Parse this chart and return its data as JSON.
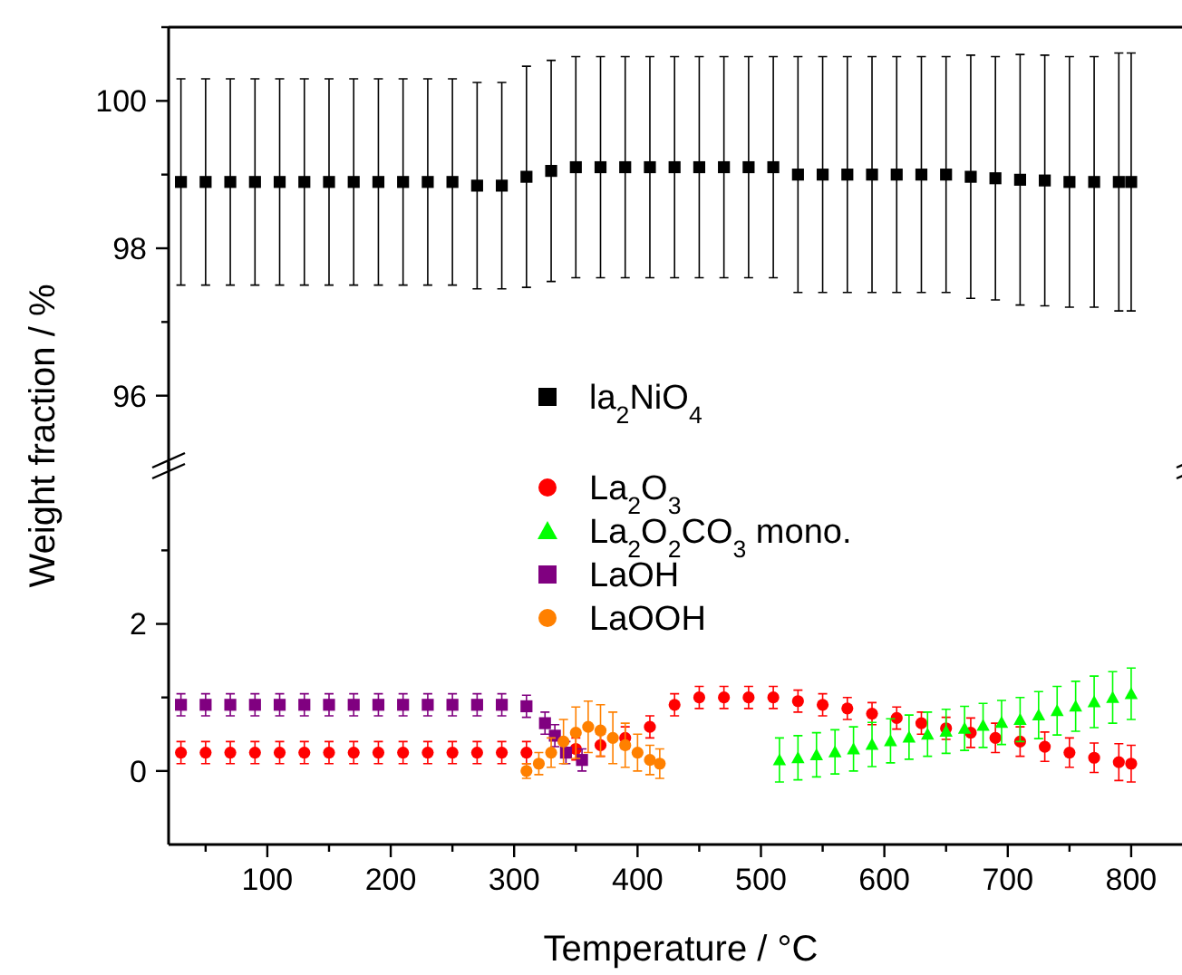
{
  "chart_data": [
    {
      "type": "scatter",
      "ylabel": "Weight fraction / %",
      "xlim": [
        20,
        850
      ],
      "ylim": [
        95,
        101
      ],
      "yticks": [
        96,
        {
          "value": 97,
          "label": null
        },
        98,
        {
          "value": 99,
          "label": null
        },
        100,
        {
          "value": 101,
          "label": null
        }
      ],
      "tick_labels": "y",
      "legend": "bottom",
      "marker": "square",
      "x": [
        30,
        50,
        70,
        90,
        110,
        130,
        150,
        170,
        190,
        210,
        230,
        250,
        270,
        290,
        310,
        330,
        350,
        370,
        390,
        410,
        430,
        450,
        470,
        490,
        510,
        530,
        550,
        570,
        590,
        610,
        630,
        650,
        670,
        690,
        710,
        730,
        750,
        770,
        790,
        800
      ],
      "series": [
        {
          "name": "la$_{2}$NiO$_{4}$",
          "color": "#000000",
          "values": [
            98.9,
            98.9,
            98.9,
            98.9,
            98.9,
            98.9,
            98.9,
            98.9,
            98.9,
            98.9,
            98.9,
            98.9,
            98.85,
            98.85,
            98.97,
            99.05,
            99.1,
            99.1,
            99.1,
            99.1,
            99.1,
            99.1,
            99.1,
            99.1,
            99.1,
            99.0,
            99.0,
            99.0,
            99.0,
            99.0,
            99.0,
            99.0,
            98.97,
            98.95,
            98.93,
            98.92,
            98.9,
            98.9,
            98.9,
            98.9
          ],
          "errors": [
            1.4,
            1.4,
            1.4,
            1.4,
            1.4,
            1.4,
            1.4,
            1.4,
            1.4,
            1.4,
            1.4,
            1.4,
            1.4,
            1.4,
            1.5,
            1.5,
            1.5,
            1.5,
            1.5,
            1.5,
            1.5,
            1.5,
            1.5,
            1.5,
            1.5,
            1.6,
            1.6,
            1.6,
            1.6,
            1.6,
            1.6,
            1.6,
            1.65,
            1.65,
            1.7,
            1.7,
            1.7,
            1.7,
            1.75,
            1.75
          ]
        }
      ]
    },
    {
      "type": "scatter",
      "xlabel": "Temperature / °C",
      "xlim": [
        20,
        850
      ],
      "xticks": [
        {
          "value": 50,
          "label": null
        },
        100,
        {
          "value": 150,
          "label": null
        },
        200,
        {
          "value": 250,
          "label": null
        },
        300,
        {
          "value": 350,
          "label": null
        },
        400,
        {
          "value": 450,
          "label": null
        },
        500,
        {
          "value": 550,
          "label": null
        },
        600,
        {
          "value": 650,
          "label": null
        },
        700,
        {
          "value": 750,
          "label": null
        },
        800
      ],
      "ylim": [
        -1,
        4.2
      ],
      "yticks": [
        0,
        {
          "value": 1,
          "label": null
        },
        2,
        {
          "value": 3,
          "label": null
        }
      ],
      "legend": "top",
      "series": [
        {
          "name": "La$_{2}$O$_{3}$",
          "color": "#ff0000",
          "marker": "circle",
          "x": [
            30,
            50,
            70,
            90,
            110,
            130,
            150,
            170,
            190,
            210,
            230,
            250,
            270,
            290,
            310,
            350,
            370,
            390,
            410,
            430,
            450,
            470,
            490,
            510,
            530,
            550,
            570,
            590,
            610,
            630,
            650,
            670,
            690,
            710,
            730,
            750,
            770,
            790,
            800
          ],
          "values": [
            0.25,
            0.25,
            0.25,
            0.25,
            0.25,
            0.25,
            0.25,
            0.25,
            0.25,
            0.25,
            0.25,
            0.25,
            0.25,
            0.25,
            0.25,
            0.3,
            0.35,
            0.45,
            0.6,
            0.9,
            1.0,
            1.0,
            1.0,
            1.0,
            0.95,
            0.9,
            0.85,
            0.78,
            0.72,
            0.65,
            0.58,
            0.52,
            0.45,
            0.4,
            0.33,
            0.25,
            0.18,
            0.12,
            0.1
          ],
          "errors": [
            0.15,
            0.15,
            0.15,
            0.15,
            0.15,
            0.15,
            0.15,
            0.15,
            0.15,
            0.15,
            0.15,
            0.15,
            0.15,
            0.15,
            0.15,
            0.15,
            0.15,
            0.15,
            0.15,
            0.15,
            0.15,
            0.15,
            0.15,
            0.15,
            0.15,
            0.15,
            0.15,
            0.15,
            0.15,
            0.15,
            0.15,
            0.2,
            0.2,
            0.2,
            0.2,
            0.2,
            0.2,
            0.25,
            0.25
          ]
        },
        {
          "name": "La$_{2}$O$_{2}$CO$_{3}$ mono.",
          "color": "#00ff00",
          "marker": "triangle",
          "x": [
            515,
            530,
            545,
            560,
            575,
            590,
            605,
            620,
            635,
            650,
            665,
            680,
            695,
            710,
            725,
            740,
            755,
            770,
            785,
            800
          ],
          "values": [
            0.15,
            0.18,
            0.22,
            0.26,
            0.3,
            0.36,
            0.41,
            0.46,
            0.5,
            0.54,
            0.58,
            0.62,
            0.66,
            0.7,
            0.76,
            0.82,
            0.88,
            0.94,
            1.0,
            1.05
          ],
          "errors": [
            0.3,
            0.3,
            0.3,
            0.3,
            0.3,
            0.3,
            0.3,
            0.3,
            0.3,
            0.3,
            0.3,
            0.3,
            0.3,
            0.3,
            0.32,
            0.33,
            0.34,
            0.35,
            0.35,
            0.35
          ]
        },
        {
          "name": "LaOH",
          "color": "#800080",
          "marker": "square",
          "x": [
            30,
            50,
            70,
            90,
            110,
            130,
            150,
            170,
            190,
            210,
            230,
            250,
            270,
            290,
            310,
            325,
            333,
            342,
            355
          ],
          "values": [
            0.9,
            0.9,
            0.9,
            0.9,
            0.9,
            0.9,
            0.9,
            0.9,
            0.9,
            0.9,
            0.9,
            0.9,
            0.9,
            0.9,
            0.88,
            0.65,
            0.48,
            0.25,
            0.15
          ],
          "errors": [
            0.15,
            0.15,
            0.15,
            0.15,
            0.15,
            0.15,
            0.15,
            0.15,
            0.15,
            0.15,
            0.15,
            0.15,
            0.15,
            0.15,
            0.15,
            0.15,
            0.15,
            0.15,
            0.15
          ]
        },
        {
          "name": "LaOOH",
          "color": "#ff8000",
          "marker": "circle",
          "x": [
            310,
            320,
            330,
            340,
            350,
            360,
            370,
            380,
            390,
            400,
            410,
            418
          ],
          "values": [
            0,
            0.1,
            0.25,
            0.4,
            0.52,
            0.6,
            0.55,
            0.45,
            0.35,
            0.25,
            0.15,
            0.1
          ],
          "errors": [
            0.1,
            0.15,
            0.2,
            0.3,
            0.35,
            0.35,
            0.35,
            0.35,
            0.3,
            0.25,
            0.2,
            0.2
          ]
        }
      ]
    }
  ]
}
